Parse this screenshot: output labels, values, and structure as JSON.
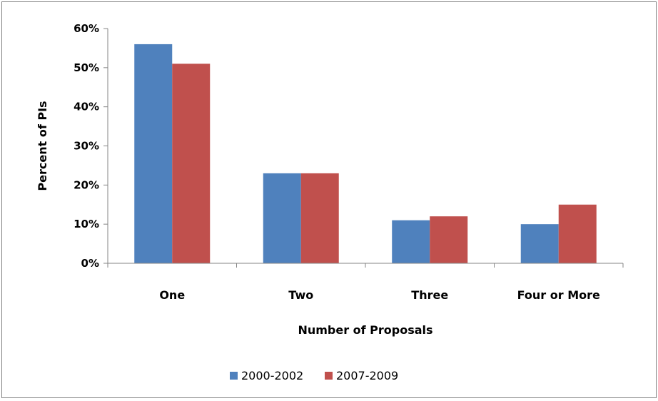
{
  "chart_data": {
    "type": "bar",
    "title": "",
    "xlabel": "Number of Proposals",
    "ylabel": "Percent of PIs",
    "categories": [
      "One",
      "Two",
      "Three",
      "Four or More"
    ],
    "series": [
      {
        "name": "2000-2002",
        "values": [
          56,
          23,
          11,
          10
        ],
        "color": "#4f81bd"
      },
      {
        "name": "2007-2009",
        "values": [
          51,
          23,
          12,
          15
        ],
        "color": "#c0504d"
      }
    ],
    "ylim": [
      0,
      60
    ],
    "yticks": [
      "0%",
      "10%",
      "20%",
      "30%",
      "40%",
      "50%",
      "60%"
    ],
    "y_unit": "percent",
    "grid": false,
    "legend_position": "bottom"
  }
}
